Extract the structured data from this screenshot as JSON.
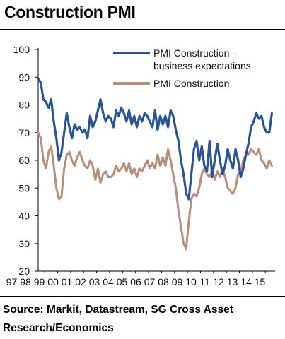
{
  "title": "Construction PMI",
  "source": "Source: Markit, Datastream, SG Cross Asset Research/Economics",
  "x_tick_strip": "97989900010203040506070809101112131415",
  "chart_data": {
    "type": "line",
    "title": "Construction PMI",
    "xlabel": "",
    "ylabel": "",
    "ylim": [
      20,
      100
    ],
    "y_ticks": [
      20,
      30,
      40,
      50,
      60,
      70,
      80,
      90,
      100
    ],
    "x_range": [
      1997.5,
      2015.75
    ],
    "x_tick_labels": [
      "97",
      "98",
      "99",
      "00",
      "01",
      "02",
      "03",
      "04",
      "05",
      "06",
      "07",
      "08",
      "09",
      "10",
      "11",
      "12",
      "13",
      "14",
      "15"
    ],
    "grid": false,
    "legend_placement": "top-right",
    "series": [
      {
        "name": "PMI Construction - business expectations",
        "legend_lines": [
          "PMI Construction -",
          "business expectations"
        ],
        "color": "#2a5593",
        "x": [
          1997.5,
          1997.7,
          1997.9,
          1998.1,
          1998.3,
          1998.5,
          1998.7,
          1998.9,
          1999.1,
          1999.3,
          1999.5,
          1999.7,
          1999.9,
          2000.1,
          2000.3,
          2000.5,
          2000.7,
          2000.9,
          2001.1,
          2001.3,
          2001.5,
          2001.7,
          2001.9,
          2002.1,
          2002.3,
          2002.5,
          2002.7,
          2002.9,
          2003.1,
          2003.3,
          2003.5,
          2003.7,
          2003.9,
          2004.1,
          2004.3,
          2004.5,
          2004.7,
          2004.9,
          2005.1,
          2005.3,
          2005.5,
          2005.7,
          2005.9,
          2006.1,
          2006.3,
          2006.5,
          2006.7,
          2006.9,
          2007.1,
          2007.3,
          2007.5,
          2007.7,
          2007.9,
          2008.1,
          2008.3,
          2008.5,
          2008.7,
          2008.9,
          2009.1,
          2009.3,
          2009.5,
          2009.7,
          2009.9,
          2010.1,
          2010.3,
          2010.5,
          2010.7,
          2010.9,
          2011.1,
          2011.3,
          2011.5,
          2011.7,
          2011.9,
          2012.1,
          2012.3,
          2012.5,
          2012.7,
          2012.9,
          2013.1,
          2013.3,
          2013.5,
          2013.7,
          2013.9,
          2014.1,
          2014.3,
          2014.5,
          2014.7,
          2014.9,
          2015.1,
          2015.3,
          2015.5
        ],
        "values": [
          89.5,
          88,
          82,
          81,
          79,
          82,
          74,
          68,
          60,
          63,
          70,
          77,
          72,
          68,
          73,
          71,
          72,
          70,
          71,
          68,
          76,
          72,
          74,
          78,
          82,
          77,
          74,
          76,
          75,
          72,
          78,
          76,
          79,
          77,
          74,
          78,
          73,
          76,
          72,
          76,
          74,
          77,
          76,
          74,
          72,
          78,
          71,
          76,
          73,
          76,
          72,
          78,
          76,
          71,
          67,
          60,
          55,
          48,
          46,
          55,
          64,
          67,
          60,
          65,
          58,
          56,
          67,
          54,
          60,
          66,
          60,
          55,
          58,
          64,
          60,
          57,
          64,
          60,
          54,
          57,
          62,
          66,
          72,
          74,
          77,
          75,
          76,
          72,
          70,
          70,
          77
        ]
      },
      {
        "name": "PMI Construction",
        "legend_lines": [
          "PMI Construction"
        ],
        "color": "#b48f7b",
        "x": [
          1997.5,
          1997.7,
          1997.9,
          1998.1,
          1998.3,
          1998.5,
          1998.7,
          1998.9,
          1999.1,
          1999.3,
          1999.5,
          1999.7,
          1999.9,
          2000.1,
          2000.3,
          2000.5,
          2000.7,
          2000.9,
          2001.1,
          2001.3,
          2001.5,
          2001.7,
          2001.9,
          2002.1,
          2002.3,
          2002.5,
          2002.7,
          2002.9,
          2003.1,
          2003.3,
          2003.5,
          2003.7,
          2003.9,
          2004.1,
          2004.3,
          2004.5,
          2004.7,
          2004.9,
          2005.1,
          2005.3,
          2005.5,
          2005.7,
          2005.9,
          2006.1,
          2006.3,
          2006.5,
          2006.7,
          2006.9,
          2007.1,
          2007.3,
          2007.5,
          2007.7,
          2007.9,
          2008.1,
          2008.3,
          2008.5,
          2008.7,
          2008.9,
          2009.1,
          2009.3,
          2009.5,
          2009.7,
          2009.9,
          2010.1,
          2010.3,
          2010.5,
          2010.7,
          2010.9,
          2011.1,
          2011.3,
          2011.5,
          2011.7,
          2011.9,
          2012.1,
          2012.3,
          2012.5,
          2012.7,
          2012.9,
          2013.1,
          2013.3,
          2013.5,
          2013.7,
          2013.9,
          2014.1,
          2014.3,
          2014.5,
          2014.7,
          2014.9,
          2015.1,
          2015.3,
          2015.5
        ],
        "values": [
          70,
          68,
          60,
          57,
          63,
          65,
          58,
          50,
          46,
          47,
          57,
          62,
          63,
          60,
          58,
          61,
          63,
          60,
          58,
          57,
          60,
          58,
          53,
          57,
          52,
          55,
          56,
          54,
          54,
          55,
          58,
          56,
          57,
          59,
          56,
          59,
          55,
          57,
          54,
          57,
          56,
          58,
          60,
          57,
          59,
          57,
          62,
          58,
          61,
          58,
          64,
          60,
          55,
          50,
          42,
          36,
          30,
          28,
          38,
          46,
          48,
          47,
          50,
          55,
          57,
          55,
          54,
          56,
          53,
          56,
          54,
          57,
          54,
          50,
          49,
          48,
          50,
          55,
          56,
          60,
          62,
          62,
          64,
          63,
          62,
          64,
          60,
          59,
          57,
          60,
          58
        ]
      }
    ]
  }
}
